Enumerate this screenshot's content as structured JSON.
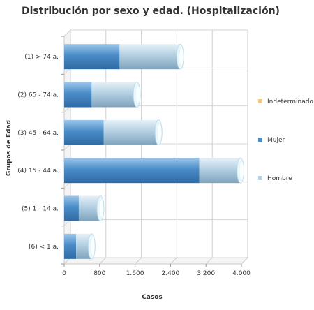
{
  "chart_data": {
    "type": "bar",
    "orientation": "horizontal",
    "stacked": true,
    "style_3d": true,
    "title": "Distribución por sexo y edad. (Hospitalización)",
    "xlabel": "Casos",
    "ylabel": "Grupos de Edad",
    "xlim": [
      0,
      4000
    ],
    "x_ticks": [
      "0",
      "800",
      "1.600",
      "2.400",
      "3.200",
      "4.000"
    ],
    "x_tick_values": [
      0,
      800,
      1600,
      2400,
      3200,
      4000
    ],
    "grid": true,
    "legend_position": "right",
    "categories": [
      "(1) > 74 a.",
      "(2) 65 - 74 a.",
      "(3) 45 - 64 a.",
      "(4) 15 - 44 a.",
      "(5) 1 - 14 a.",
      "(6) < 1 a."
    ],
    "series": [
      {
        "name": "Indeterminado",
        "color": "#f5c77e",
        "values": [
          0,
          0,
          0,
          0,
          0,
          0
        ]
      },
      {
        "name": "Mujer",
        "color": "#4a8cc8",
        "values": [
          1250,
          620,
          890,
          3050,
          330,
          270
        ]
      },
      {
        "name": "Hombre",
        "color": "#b5d3e7",
        "values": [
          1370,
          1020,
          1240,
          930,
          490,
          350
        ]
      }
    ]
  }
}
